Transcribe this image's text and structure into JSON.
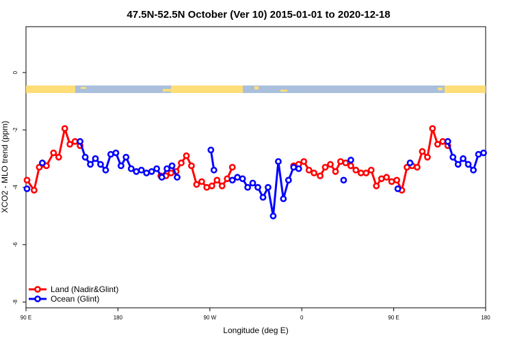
{
  "chart_data": {
    "type": "line",
    "title": "47.5N-52.5N October (Ver 10)   2015-01-01 to 2020-12-18",
    "xlabel": "Longitude (deg E)",
    "ylabel": "XCO2 - MLO trend (ppm)",
    "x_ticks": [
      {
        "value": 90,
        "label": "90 E"
      },
      {
        "value": 180,
        "label": "180"
      },
      {
        "value": 270,
        "label": "90 W"
      },
      {
        "value": 360,
        "label": "0"
      },
      {
        "value": 450,
        "label": "90 E"
      },
      {
        "value": 540,
        "label": "180"
      }
    ],
    "y_ticks": [
      {
        "value": 0,
        "label": "0"
      },
      {
        "value": -2,
        "label": "-2"
      },
      {
        "value": -4,
        "label": "-4"
      },
      {
        "value": -6,
        "label": "-6"
      },
      {
        "value": -8,
        "label": "-8"
      }
    ],
    "xlim": [
      90,
      540
    ],
    "ylim": [
      -8.2,
      1.6
    ],
    "legend_position": "bottom-left",
    "colors": {
      "land": "#ff0000",
      "ocean": "#0000ff",
      "land_strip": "#ffdd77",
      "ocean_strip": "#a9bfdc"
    },
    "series": [
      {
        "name": "Land (Nadir&Glint)",
        "color": "#ff0000",
        "segments": [
          [
            [
              91,
              -3.75
            ],
            [
              98,
              -4.1
            ],
            [
              103,
              -3.3
            ],
            [
              110,
              -3.25
            ],
            [
              117,
              -2.8
            ],
            [
              122,
              -2.95
            ],
            [
              128,
              -1.95
            ],
            [
              133,
              -2.5
            ],
            [
              138,
              -2.4
            ],
            [
              143,
              -2.55
            ]
          ],
          [
            [
              222,
              -3.6
            ],
            [
              227,
              -3.6
            ],
            [
              232,
              -3.5
            ],
            [
              237,
              -3.45
            ],
            [
              242,
              -3.15
            ],
            [
              247,
              -2.9
            ],
            [
              252,
              -3.25
            ],
            [
              257,
              -3.9
            ],
            [
              262,
              -3.8
            ],
            [
              267,
              -4.0
            ],
            [
              272,
              -3.95
            ],
            [
              277,
              -3.75
            ],
            [
              282,
              -3.95
            ],
            [
              287,
              -3.7
            ],
            [
              292,
              -3.3
            ]
          ],
          [
            [
              352,
              -3.25
            ],
            [
              357,
              -3.2
            ],
            [
              362,
              -3.1
            ],
            [
              367,
              -3.4
            ],
            [
              372,
              -3.5
            ],
            [
              378,
              -3.6
            ],
            [
              383,
              -3.3
            ],
            [
              388,
              -3.2
            ],
            [
              393,
              -3.45
            ],
            [
              398,
              -3.1
            ],
            [
              403,
              -3.15
            ],
            [
              408,
              -3.25
            ],
            [
              413,
              -3.4
            ],
            [
              418,
              -3.5
            ],
            [
              423,
              -3.5
            ],
            [
              428,
              -3.4
            ],
            [
              433,
              -3.95
            ],
            [
              438,
              -3.7
            ],
            [
              443,
              -3.65
            ],
            [
              448,
              -3.8
            ],
            [
              453,
              -3.75
            ],
            [
              458,
              -4.1
            ],
            [
              463,
              -3.3
            ],
            [
              468,
              -3.25
            ],
            [
              473,
              -3.3
            ],
            [
              478,
              -2.75
            ],
            [
              483,
              -2.95
            ],
            [
              488,
              -1.95
            ],
            [
              493,
              -2.5
            ],
            [
              498,
              -2.4
            ],
            [
              503,
              -2.55
            ]
          ]
        ]
      },
      {
        "name": "Ocean (Glint)",
        "color": "#0000ff",
        "segments": [
          [
            [
              91,
              -4.05
            ]
          ],
          [
            [
              106,
              -3.15
            ]
          ],
          [
            [
              143,
              -2.4
            ],
            [
              148,
              -2.95
            ],
            [
              153,
              -3.2
            ],
            [
              158,
              -3.0
            ],
            [
              163,
              -3.2
            ],
            [
              168,
              -3.4
            ],
            [
              173,
              -2.85
            ],
            [
              178,
              -2.8
            ],
            [
              183,
              -3.25
            ],
            [
              188,
              -2.95
            ],
            [
              193,
              -3.35
            ],
            [
              198,
              -3.45
            ],
            [
              203,
              -3.4
            ],
            [
              208,
              -3.5
            ],
            [
              213,
              -3.45
            ],
            [
              218,
              -3.35
            ],
            [
              223,
              -3.65
            ],
            [
              228,
              -3.35
            ],
            [
              233,
              -3.25
            ],
            [
              238,
              -3.65
            ]
          ],
          [
            [
              271,
              -2.7
            ],
            [
              274,
              -3.4
            ]
          ],
          [
            [
              292,
              -3.75
            ],
            [
              297,
              -3.65
            ],
            [
              302,
              -3.7
            ],
            [
              307,
              -4.0
            ],
            [
              312,
              -3.85
            ],
            [
              317,
              -4.0
            ],
            [
              322,
              -4.35
            ],
            [
              327,
              -4.0
            ],
            [
              332,
              -5.0
            ],
            [
              337,
              -3.1
            ],
            [
              342,
              -4.4
            ],
            [
              347,
              -3.75
            ],
            [
              352,
              -3.3
            ],
            [
              357,
              -3.35
            ]
          ],
          [
            [
              401,
              -3.75
            ]
          ],
          [
            [
              408,
              -3.05
            ]
          ],
          [
            [
              454,
              -4.05
            ]
          ],
          [
            [
              466,
              -3.15
            ]
          ],
          [
            [
              503,
              -2.4
            ],
            [
              508,
              -2.95
            ],
            [
              513,
              -3.2
            ],
            [
              518,
              -3.0
            ],
            [
              523,
              -3.2
            ],
            [
              528,
              -3.4
            ],
            [
              533,
              -2.85
            ],
            [
              538,
              -2.8
            ]
          ]
        ]
      }
    ]
  }
}
